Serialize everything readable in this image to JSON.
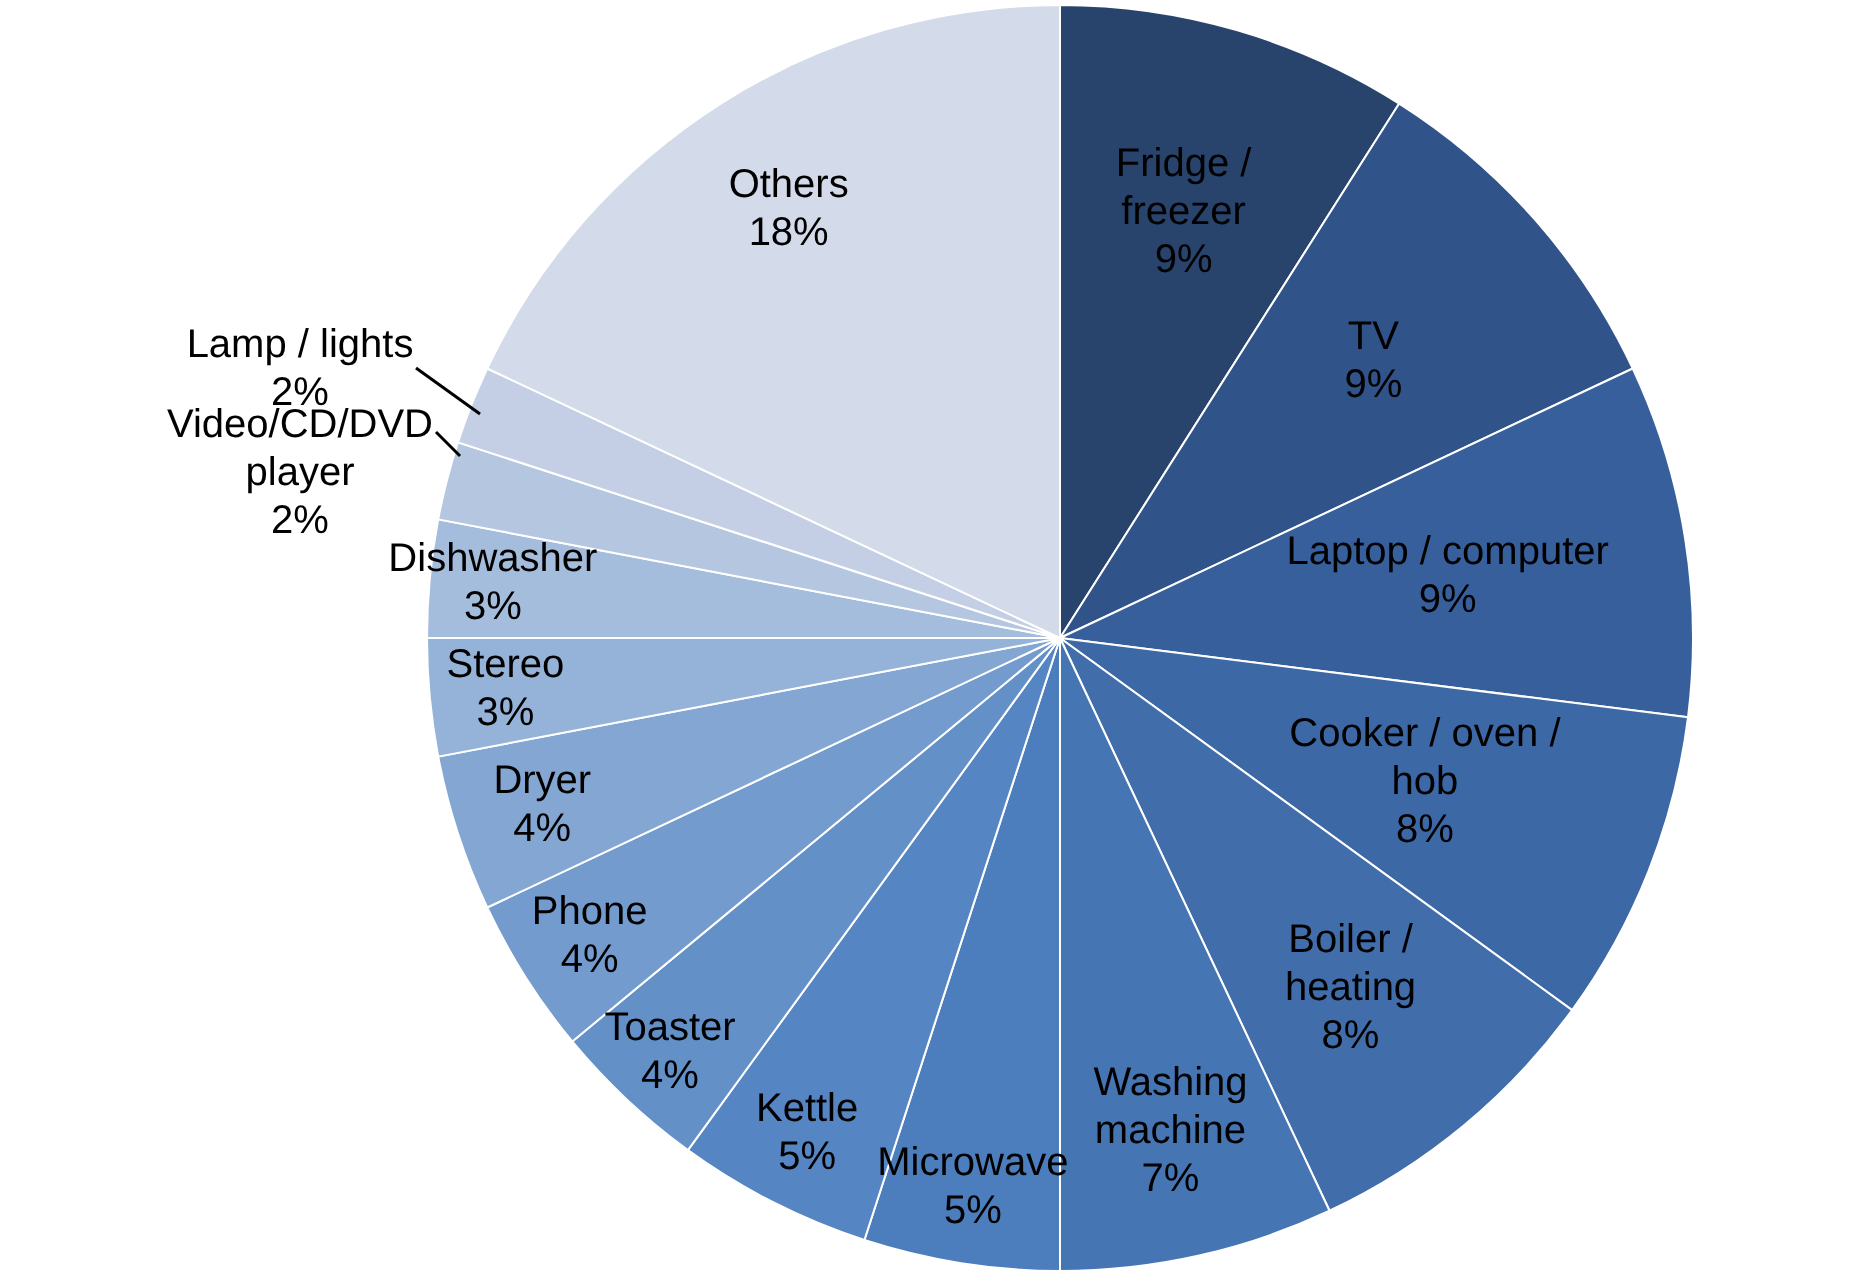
{
  "chart_data": {
    "type": "pie",
    "categories": [
      "Fridge / freezer",
      "TV",
      "Laptop / computer",
      "Cooker / oven / hob",
      "Boiler / heating",
      "Washing machine",
      "Microwave",
      "Kettle",
      "Toaster",
      "Phone",
      "Dryer",
      "Stereo",
      "Dishwasher",
      "Video/CD/DVD player",
      "Lamp / lights",
      "Others"
    ],
    "values": [
      9,
      9,
      9,
      8,
      8,
      7,
      5,
      5,
      4,
      4,
      4,
      3,
      3,
      2,
      2,
      18
    ],
    "value_labels": [
      "9%",
      "9%",
      "9%",
      "8%",
      "8%",
      "7%",
      "5%",
      "5%",
      "4%",
      "4%",
      "4%",
      "3%",
      "3%",
      "2%",
      "2%",
      "18%"
    ],
    "colors": [
      "#29446c",
      "#30538a",
      "#375f9c",
      "#3d68a6",
      "#416eab",
      "#4675b4",
      "#4c7dbc",
      "#5585c2",
      "#6490c8",
      "#739bcd",
      "#84a6d2",
      "#95b2d8",
      "#a5bddd",
      "#b5c6e1",
      "#c4cfe6",
      "#d3dae9"
    ],
    "legend": false
  }
}
